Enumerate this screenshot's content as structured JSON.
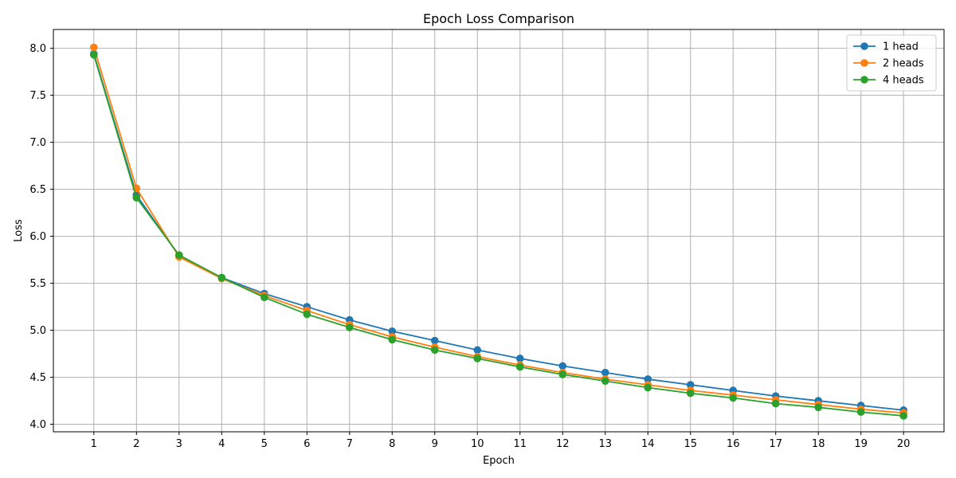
{
  "chart_data": {
    "type": "line",
    "title": "Epoch Loss Comparison",
    "xlabel": "Epoch",
    "ylabel": "Loss",
    "x": [
      1,
      2,
      3,
      4,
      5,
      6,
      7,
      8,
      9,
      10,
      11,
      12,
      13,
      14,
      15,
      16,
      17,
      18,
      19,
      20
    ],
    "x_tick_labels": [
      "1",
      "2",
      "3",
      "4",
      "5",
      "6",
      "7",
      "8",
      "9",
      "10",
      "11",
      "12",
      "13",
      "14",
      "15",
      "16",
      "17",
      "18",
      "19",
      "20"
    ],
    "ylim": [
      3.92,
      8.2
    ],
    "y_ticks": [
      4.0,
      4.5,
      5.0,
      5.5,
      6.0,
      6.5,
      7.0,
      7.5,
      8.0
    ],
    "y_tick_labels": [
      "4.0",
      "4.5",
      "5.0",
      "5.5",
      "6.0",
      "6.5",
      "7.0",
      "7.5",
      "8.0"
    ],
    "grid": true,
    "legend_position": "top-right",
    "series": [
      {
        "name": "1 head",
        "color": "#1f77b4",
        "values": [
          7.94,
          6.44,
          5.79,
          5.56,
          5.39,
          5.25,
          5.11,
          4.99,
          4.89,
          4.79,
          4.7,
          4.62,
          4.55,
          4.48,
          4.42,
          4.36,
          4.3,
          4.25,
          4.2,
          4.15
        ]
      },
      {
        "name": "2 heads",
        "color": "#ff7f0e",
        "values": [
          8.01,
          6.51,
          5.78,
          5.55,
          5.37,
          5.21,
          5.06,
          4.93,
          4.82,
          4.72,
          4.63,
          4.55,
          4.48,
          4.42,
          4.36,
          4.31,
          4.26,
          4.21,
          4.16,
          4.12
        ]
      },
      {
        "name": "4 heads",
        "color": "#2ca02c",
        "values": [
          7.93,
          6.41,
          5.8,
          5.56,
          5.35,
          5.17,
          5.03,
          4.9,
          4.79,
          4.7,
          4.61,
          4.53,
          4.46,
          4.39,
          4.33,
          4.28,
          4.22,
          4.18,
          4.13,
          4.09
        ]
      }
    ]
  }
}
